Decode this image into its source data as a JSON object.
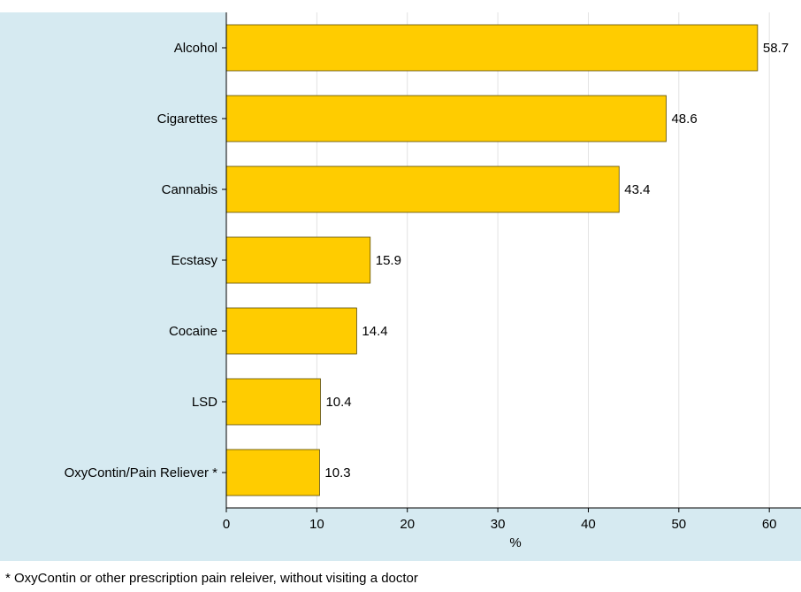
{
  "colors": {
    "panel_background": "#d6eaf1",
    "plot_background": "#ffffff",
    "bar_fill": "#ffcc00",
    "bar_stroke": "#5a4a00",
    "grid": "#e2e2e2",
    "axis": "#000000"
  },
  "chart_data": {
    "type": "bar",
    "orientation": "horizontal",
    "categories": [
      "Alcohol",
      "Cigarettes",
      "Cannabis",
      "Ecstasy",
      "Cocaine",
      "LSD",
      "OxyContin/Pain Reliever *"
    ],
    "values": [
      58.7,
      48.6,
      43.4,
      15.9,
      14.4,
      10.4,
      10.3
    ],
    "data_labels": [
      "58.7",
      "48.6",
      "43.4",
      "15.9",
      "14.4",
      "10.4",
      "10.3"
    ],
    "x_ticks": [
      0,
      10,
      20,
      30,
      40,
      50,
      60
    ],
    "x_tick_labels": [
      "0",
      "10",
      "20",
      "30",
      "40",
      "50",
      "60"
    ],
    "xlim": [
      0,
      63.5
    ],
    "xlabel": "%",
    "ylabel": "",
    "title": "",
    "grid": true
  },
  "footnote": "* OxyContin or other prescription pain releiver, without visiting a doctor"
}
